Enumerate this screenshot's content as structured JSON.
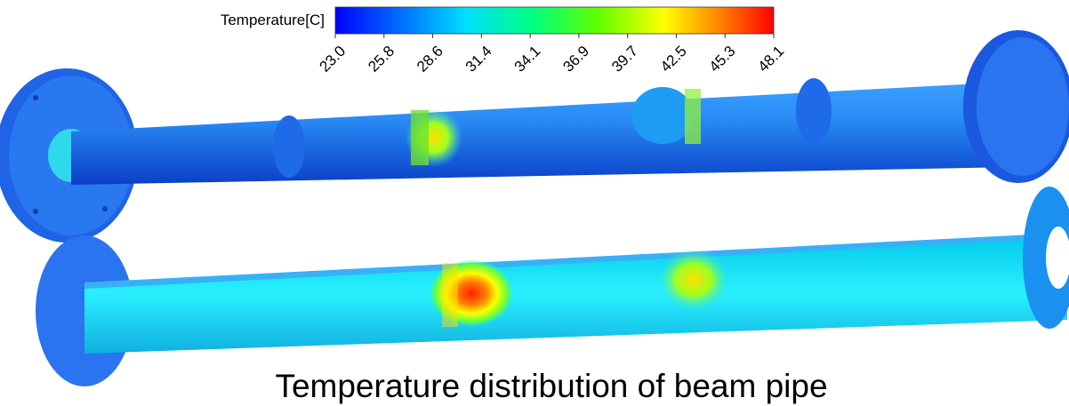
{
  "colorbar": {
    "title": "Temperature[C]",
    "ticks": [
      "23.0",
      "25.8",
      "28.6",
      "31.4",
      "34.1",
      "36.9",
      "39.7",
      "42.5",
      "45.3",
      "48.1"
    ]
  },
  "caption": "Temperature distribution of beam pipe"
}
